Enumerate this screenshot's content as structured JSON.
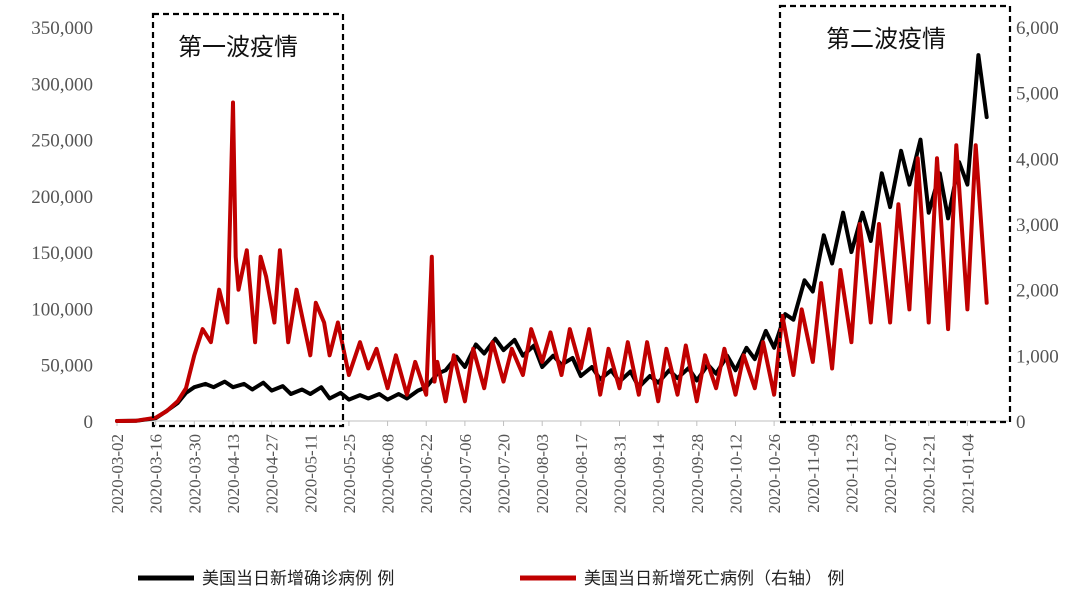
{
  "chart_data": {
    "type": "line",
    "x_ticks": [
      "2020-03-02",
      "2020-03-16",
      "2020-03-30",
      "2020-04-13",
      "2020-04-27",
      "2020-05-11",
      "2020-05-25",
      "2020-06-08",
      "2020-06-22",
      "2020-07-06",
      "2020-07-20",
      "2020-08-03",
      "2020-08-17",
      "2020-08-31",
      "2020-09-14",
      "2020-09-28",
      "2020-10-12",
      "2020-10-26",
      "2020-11-09",
      "2020-11-23",
      "2020-12-07",
      "2020-12-21",
      "2021-01-04"
    ],
    "y_left": {
      "min": 0,
      "max": 350000,
      "ticks": [
        "0",
        "50,000",
        "100,000",
        "150,000",
        "200,000",
        "250,000",
        "300,000",
        "350,000"
      ]
    },
    "y_right": {
      "min": 0,
      "max": 6000,
      "ticks": [
        "0",
        "1,000",
        "2,000",
        "3,000",
        "4,000",
        "5,000",
        "6,000"
      ]
    },
    "annotations": [
      "第一波疫情",
      "第二波疫情"
    ],
    "series": [
      {
        "name": "美国当日新增确诊病例 例",
        "axis": "left",
        "color": "#000000",
        "x": [
          "2020-03-02",
          "2020-03-09",
          "2020-03-16",
          "2020-03-20",
          "2020-03-24",
          "2020-03-27",
          "2020-03-30",
          "2020-04-03",
          "2020-04-06",
          "2020-04-10",
          "2020-04-13",
          "2020-04-17",
          "2020-04-20",
          "2020-04-24",
          "2020-04-27",
          "2020-05-01",
          "2020-05-04",
          "2020-05-08",
          "2020-05-11",
          "2020-05-15",
          "2020-05-18",
          "2020-05-22",
          "2020-05-25",
          "2020-05-29",
          "2020-06-01",
          "2020-06-05",
          "2020-06-08",
          "2020-06-12",
          "2020-06-15",
          "2020-06-19",
          "2020-06-22",
          "2020-06-26",
          "2020-06-29",
          "2020-07-03",
          "2020-07-06",
          "2020-07-10",
          "2020-07-13",
          "2020-07-17",
          "2020-07-20",
          "2020-07-24",
          "2020-07-27",
          "2020-07-31",
          "2020-08-03",
          "2020-08-07",
          "2020-08-10",
          "2020-08-14",
          "2020-08-17",
          "2020-08-21",
          "2020-08-24",
          "2020-08-28",
          "2020-08-31",
          "2020-09-04",
          "2020-09-07",
          "2020-09-11",
          "2020-09-14",
          "2020-09-18",
          "2020-09-21",
          "2020-09-25",
          "2020-09-28",
          "2020-10-02",
          "2020-10-05",
          "2020-10-09",
          "2020-10-12",
          "2020-10-16",
          "2020-10-19",
          "2020-10-23",
          "2020-10-26",
          "2020-10-30",
          "2020-11-02",
          "2020-11-06",
          "2020-11-09",
          "2020-11-13",
          "2020-11-16",
          "2020-11-20",
          "2020-11-23",
          "2020-11-27",
          "2020-11-30",
          "2020-12-04",
          "2020-12-07",
          "2020-12-11",
          "2020-12-14",
          "2020-12-18",
          "2020-12-21",
          "2020-12-25",
          "2020-12-28",
          "2021-01-01",
          "2021-01-04",
          "2021-01-08",
          "2021-01-11"
        ],
        "values": [
          0,
          200,
          2500,
          9000,
          16000,
          25000,
          30000,
          33000,
          30000,
          35000,
          30000,
          33000,
          28000,
          34000,
          27000,
          31000,
          24000,
          28000,
          24000,
          30000,
          20000,
          25000,
          19000,
          23000,
          20000,
          24000,
          19000,
          24000,
          20000,
          27000,
          30000,
          42000,
          45000,
          57000,
          48000,
          68000,
          60000,
          73000,
          63000,
          72000,
          58000,
          67000,
          48000,
          58000,
          50000,
          56000,
          40000,
          48000,
          37000,
          45000,
          35000,
          44000,
          30000,
          40000,
          34000,
          45000,
          38000,
          47000,
          36000,
          50000,
          42000,
          58000,
          45000,
          65000,
          55000,
          80000,
          65000,
          95000,
          90000,
          125000,
          115000,
          165000,
          140000,
          185000,
          150000,
          185000,
          160000,
          220000,
          190000,
          240000,
          210000,
          250000,
          185000,
          220000,
          180000,
          230000,
          210000,
          325000,
          270000
        ]
      },
      {
        "name": "美国当日新增死亡病例（右轴） 例",
        "axis": "right",
        "color": "#c00000",
        "x": [
          "2020-03-02",
          "2020-03-09",
          "2020-03-16",
          "2020-03-20",
          "2020-03-24",
          "2020-03-27",
          "2020-03-30",
          "2020-04-02",
          "2020-04-05",
          "2020-04-08",
          "2020-04-11",
          "2020-04-13",
          "2020-04-14",
          "2020-04-15",
          "2020-04-18",
          "2020-04-21",
          "2020-04-23",
          "2020-04-25",
          "2020-04-28",
          "2020-04-30",
          "2020-05-03",
          "2020-05-06",
          "2020-05-08",
          "2020-05-11",
          "2020-05-13",
          "2020-05-16",
          "2020-05-18",
          "2020-05-21",
          "2020-05-25",
          "2020-05-29",
          "2020-06-01",
          "2020-06-04",
          "2020-06-08",
          "2020-06-11",
          "2020-06-15",
          "2020-06-18",
          "2020-06-22",
          "2020-06-24",
          "2020-06-25",
          "2020-06-26",
          "2020-06-29",
          "2020-07-02",
          "2020-07-06",
          "2020-07-09",
          "2020-07-13",
          "2020-07-16",
          "2020-07-20",
          "2020-07-23",
          "2020-07-27",
          "2020-07-30",
          "2020-08-03",
          "2020-08-06",
          "2020-08-10",
          "2020-08-13",
          "2020-08-17",
          "2020-08-20",
          "2020-08-24",
          "2020-08-27",
          "2020-08-31",
          "2020-09-03",
          "2020-09-07",
          "2020-09-10",
          "2020-09-14",
          "2020-09-17",
          "2020-09-21",
          "2020-09-24",
          "2020-09-28",
          "2020-10-01",
          "2020-10-05",
          "2020-10-08",
          "2020-10-12",
          "2020-10-15",
          "2020-10-19",
          "2020-10-22",
          "2020-10-26",
          "2020-10-29",
          "2020-11-02",
          "2020-11-05",
          "2020-11-09",
          "2020-11-12",
          "2020-11-16",
          "2020-11-19",
          "2020-11-23",
          "2020-11-26",
          "2020-11-30",
          "2020-12-03",
          "2020-12-07",
          "2020-12-10",
          "2020-12-14",
          "2020-12-17",
          "2020-12-21",
          "2020-12-24",
          "2020-12-28",
          "2020-12-31",
          "2021-01-04",
          "2021-01-07",
          "2021-01-11"
        ],
        "values": [
          0,
          5,
          50,
          150,
          300,
          500,
          1000,
          1400,
          1200,
          2000,
          1500,
          4850,
          2500,
          2000,
          2600,
          1200,
          2500,
          2200,
          1500,
          2600,
          1200,
          2000,
          1600,
          1000,
          1800,
          1500,
          1000,
          1500,
          700,
          1200,
          800,
          1100,
          500,
          1000,
          400,
          900,
          400,
          2500,
          600,
          900,
          300,
          1000,
          300,
          1100,
          500,
          1200,
          600,
          1100,
          700,
          1400,
          900,
          1350,
          700,
          1400,
          800,
          1400,
          400,
          1100,
          500,
          1200,
          400,
          1200,
          300,
          1100,
          400,
          1150,
          300,
          1000,
          500,
          1100,
          400,
          1000,
          500,
          1200,
          400,
          1600,
          700,
          1700,
          900,
          2100,
          800,
          2300,
          1200,
          3000,
          1500,
          3000,
          1500,
          3300,
          1700,
          4000,
          1500,
          4000,
          1400,
          4200,
          1700,
          4200,
          1800
        ]
      }
    ]
  },
  "legend": [
    {
      "label": "美国当日新增确诊病例 例",
      "color": "#000000"
    },
    {
      "label": "美国当日新增死亡病例（右轴） 例",
      "color": "#c00000"
    }
  ]
}
